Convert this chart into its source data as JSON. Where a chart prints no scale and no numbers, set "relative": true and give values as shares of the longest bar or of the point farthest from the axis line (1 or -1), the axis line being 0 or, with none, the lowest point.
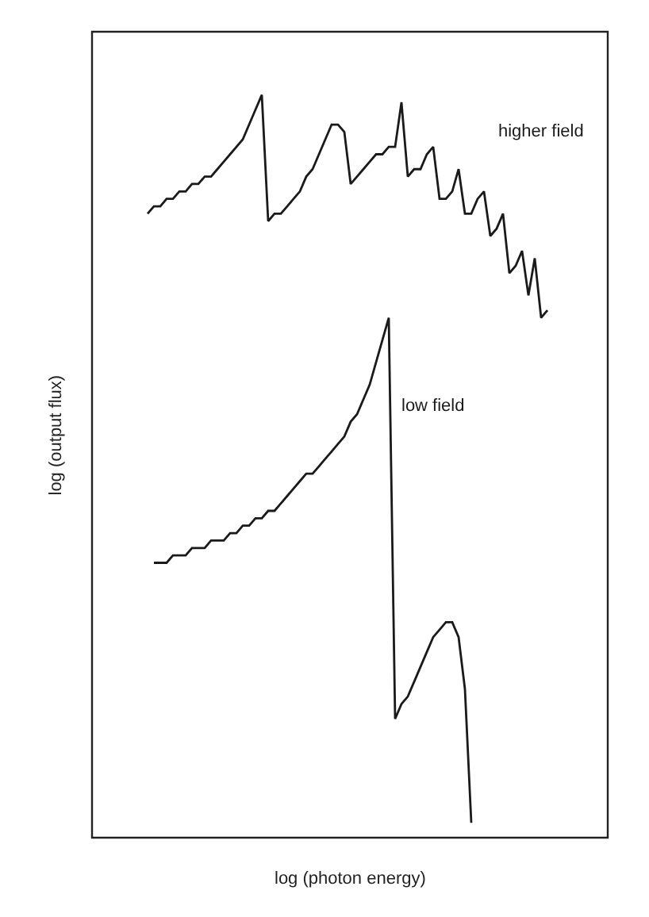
{
  "chart_data": {
    "type": "line",
    "relative": true,
    "xlabel": "log (photon energy)",
    "ylabel": "log (output flux)",
    "legend": false,
    "categories": [
      null,
      null,
      null,
      null,
      null,
      null,
      null,
      null,
      null,
      null,
      null,
      null,
      null,
      null,
      null,
      null,
      null,
      null,
      null,
      null,
      null,
      null,
      null,
      null,
      null,
      null,
      null,
      null,
      null,
      null,
      null,
      null,
      null,
      null,
      null,
      null,
      null,
      null,
      null,
      null,
      null,
      null,
      null,
      null,
      null,
      null,
      null,
      null,
      null,
      null,
      null,
      null,
      null,
      null,
      null,
      null,
      null,
      null,
      null,
      null,
      null,
      null,
      null,
      null,
      null
    ],
    "series": [
      {
        "name": "higher field",
        "color": "#1a1a1a",
        "values": [
          0.84,
          0.85,
          0.85,
          0.86,
          0.86,
          0.87,
          0.87,
          0.88,
          0.88,
          0.89,
          0.89,
          0.9,
          0.91,
          0.92,
          0.93,
          0.94,
          0.96,
          0.98,
          1.0,
          0.83,
          0.84,
          0.84,
          0.85,
          0.86,
          0.87,
          0.89,
          0.9,
          0.92,
          0.94,
          0.96,
          0.96,
          0.95,
          0.88,
          0.89,
          0.9,
          0.91,
          0.92,
          0.92,
          0.93,
          0.93,
          0.99,
          0.89,
          0.9,
          0.9,
          0.92,
          0.93,
          0.86,
          0.86,
          0.87,
          0.9,
          0.84,
          0.84,
          0.86,
          0.87,
          0.81,
          0.82,
          0.84,
          0.76,
          0.77,
          0.79,
          0.73,
          0.78,
          0.7,
          0.71,
          null
        ]
      },
      {
        "name": "low field",
        "color": "#1a1a1a",
        "values": [
          null,
          0.37,
          0.37,
          0.37,
          0.38,
          0.38,
          0.38,
          0.39,
          0.39,
          0.39,
          0.4,
          0.4,
          0.4,
          0.41,
          0.41,
          0.42,
          0.42,
          0.43,
          0.43,
          0.44,
          0.44,
          0.45,
          0.46,
          0.47,
          0.48,
          0.49,
          0.49,
          0.5,
          0.51,
          0.52,
          0.53,
          0.54,
          0.56,
          0.57,
          0.59,
          0.61,
          0.64,
          0.67,
          0.7,
          0.16,
          0.18,
          0.19,
          0.21,
          0.23,
          0.25,
          0.27,
          0.28,
          0.29,
          0.29,
          0.27,
          0.2,
          0.02,
          null,
          null,
          null,
          null,
          null,
          null,
          null,
          null,
          null,
          null,
          null,
          null,
          null
        ]
      }
    ]
  }
}
